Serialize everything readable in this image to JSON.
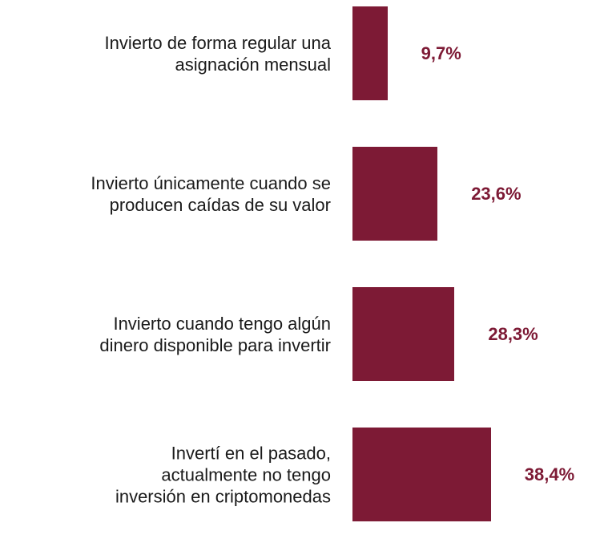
{
  "chart_data": {
    "type": "barh",
    "categories": [
      "Invierto de forma regular una\nasignación mensual",
      "Invierto únicamente cuando se\nproducen caídas de su valor",
      "Invierto cuando tengo algún\ndinero disponible para invertir",
      "Invertí en el pasado,\nactualmente no tengo\ninversión en criptomonedas"
    ],
    "values": [
      9.7,
      23.6,
      28.3,
      38.4
    ],
    "value_labels": [
      "9,7%",
      "23,6%",
      "28,3%",
      "38,4%"
    ],
    "color": "#7d1a35"
  }
}
